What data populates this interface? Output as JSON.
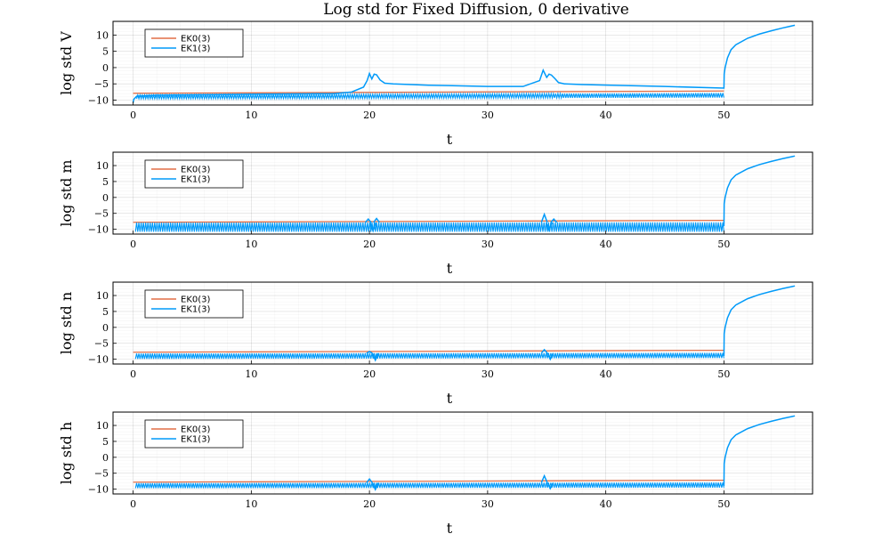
{
  "chart_data": {
    "title": "Log std for Fixed Diffusion, 0 derivative",
    "type": "line",
    "colors": {
      "EK0(3)": "#e26f46",
      "EK1(3)": "#009af9"
    },
    "panels": [
      {
        "ylabel": "log std V",
        "xlabel": "t",
        "xlim": [
          -1.7,
          57.5
        ],
        "ylim": [
          -11.5,
          14.2
        ],
        "xticks": [
          0,
          10,
          20,
          30,
          40,
          50
        ],
        "yticks": [
          -10,
          -5,
          0,
          5,
          10
        ],
        "grid": true,
        "legend": "top-left",
        "series": [
          {
            "name": "EK0(3)",
            "x": [
              0,
              50
            ],
            "y": [
              -7.9,
              -7.2
            ]
          },
          {
            "name": "EK1(3)",
            "x": [
              0,
              0.05,
              0.3,
              2,
              10,
              17,
              18.5,
              19.5,
              19.8,
              20.0,
              20.2,
              20.4,
              20.6,
              20.9,
              21.3,
              22,
              25,
              30,
              33,
              34.4,
              34.7,
              35.0,
              35.2,
              35.4,
              35.7,
              36.0,
              36.5,
              38,
              45,
              50,
              50.02,
              50.1,
              50.3,
              50.6,
              51,
              52,
              53,
              54,
              55,
              56
            ],
            "y": [
              -10.8,
              -9.8,
              -8.8,
              -8.5,
              -8.2,
              -8,
              -7.5,
              -6,
              -4,
              -1.8,
              -3.5,
              -2,
              -2.2,
              -3.8,
              -4.8,
              -5,
              -5.4,
              -5.8,
              -5.8,
              -4,
              -0.8,
              -3,
              -2,
              -2.3,
              -3.4,
              -4.6,
              -5,
              -5.2,
              -5.8,
              -6.3,
              -2,
              0,
              3,
              5.5,
              7,
              9,
              10.3,
              11.3,
              12.2,
              13
            ]
          }
        ],
        "oscillation": {
          "series": "EK1(3)",
          "x": [
            0.3,
            50
          ],
          "y_low": [
            -9.6,
            -9.2
          ],
          "y_high": [
            -8.4,
            -7.8
          ]
        }
      },
      {
        "ylabel": "log std m",
        "xlabel": "t",
        "xlim": [
          -1.7,
          57.5
        ],
        "ylim": [
          -11.5,
          14.2
        ],
        "xticks": [
          0,
          10,
          20,
          30,
          40,
          50
        ],
        "yticks": [
          -10,
          -5,
          0,
          5,
          10
        ],
        "grid": true,
        "legend": "top-left",
        "series": [
          {
            "name": "EK0(3)",
            "x": [
              0,
              50
            ],
            "y": [
              -7.8,
              -7.2
            ]
          },
          {
            "name": "EK1(3)",
            "x": [
              50,
              50.02,
              50.1,
              50.3,
              50.6,
              51,
              52,
              53,
              54,
              55,
              56
            ],
            "y": [
              -9,
              -2,
              0,
              3,
              5.5,
              7,
              9,
              10.3,
              11.3,
              12.2,
              13
            ]
          }
        ],
        "oscillation": {
          "series": "EK1(3)",
          "x": [
            0.2,
            50
          ],
          "y_low": [
            -10.8,
            -10.8
          ],
          "y_high": [
            -7.9,
            -7.8
          ]
        },
        "spikes": [
          [
            19.9,
            -6.8
          ],
          [
            20.3,
            -10.5
          ],
          [
            20.6,
            -6.6
          ],
          [
            34.8,
            -5.3
          ],
          [
            35.2,
            -10.3
          ],
          [
            35.6,
            -6.8
          ]
        ]
      },
      {
        "ylabel": "log std n",
        "xlabel": "t",
        "xlim": [
          -1.7,
          57.5
        ],
        "ylim": [
          -11.5,
          14.2
        ],
        "xticks": [
          0,
          10,
          20,
          30,
          40,
          50
        ],
        "yticks": [
          -10,
          -5,
          0,
          5,
          10
        ],
        "grid": true,
        "legend": "top-left",
        "series": [
          {
            "name": "EK0(3)",
            "x": [
              0,
              50
            ],
            "y": [
              -7.8,
              -7.2
            ]
          },
          {
            "name": "EK1(3)",
            "x": [
              50,
              50.02,
              50.1,
              50.3,
              50.6,
              51,
              52,
              53,
              54,
              55,
              56
            ],
            "y": [
              -9,
              -2,
              0,
              3,
              5.5,
              7,
              9,
              10.3,
              11.3,
              12.2,
              13
            ]
          }
        ],
        "oscillation": {
          "series": "EK1(3)",
          "x": [
            0.2,
            50
          ],
          "y_low": [
            -9.9,
            -9.6
          ],
          "y_high": [
            -8.2,
            -8.0
          ]
        },
        "spikes": [
          [
            20.0,
            -7.6
          ],
          [
            20.5,
            -10.3
          ],
          [
            34.8,
            -7.0
          ],
          [
            35.3,
            -10.0
          ]
        ]
      },
      {
        "ylabel": "log std h",
        "xlabel": "t",
        "xlim": [
          -1.7,
          57.5
        ],
        "ylim": [
          -11.5,
          14.2
        ],
        "xticks": [
          0,
          10,
          20,
          30,
          40,
          50
        ],
        "yticks": [
          -10,
          -5,
          0,
          5,
          10
        ],
        "grid": true,
        "legend": "top-left",
        "series": [
          {
            "name": "EK0(3)",
            "x": [
              0,
              50
            ],
            "y": [
              -7.8,
              -7.2
            ]
          },
          {
            "name": "EK1(3)",
            "x": [
              50,
              50.02,
              50.1,
              50.3,
              50.6,
              51,
              52,
              53,
              54,
              55,
              56
            ],
            "y": [
              -9,
              -2,
              0,
              3,
              5.5,
              7,
              9,
              10.3,
              11.3,
              12.2,
              13
            ]
          }
        ],
        "oscillation": {
          "series": "EK1(3)",
          "x": [
            0.2,
            50
          ],
          "y_low": [
            -9.7,
            -9.5
          ],
          "y_high": [
            -8.1,
            -7.9
          ]
        },
        "spikes": [
          [
            20.0,
            -6.8
          ],
          [
            20.5,
            -10.1
          ],
          [
            34.8,
            -5.8
          ],
          [
            35.3,
            -9.8
          ]
        ]
      }
    ]
  }
}
